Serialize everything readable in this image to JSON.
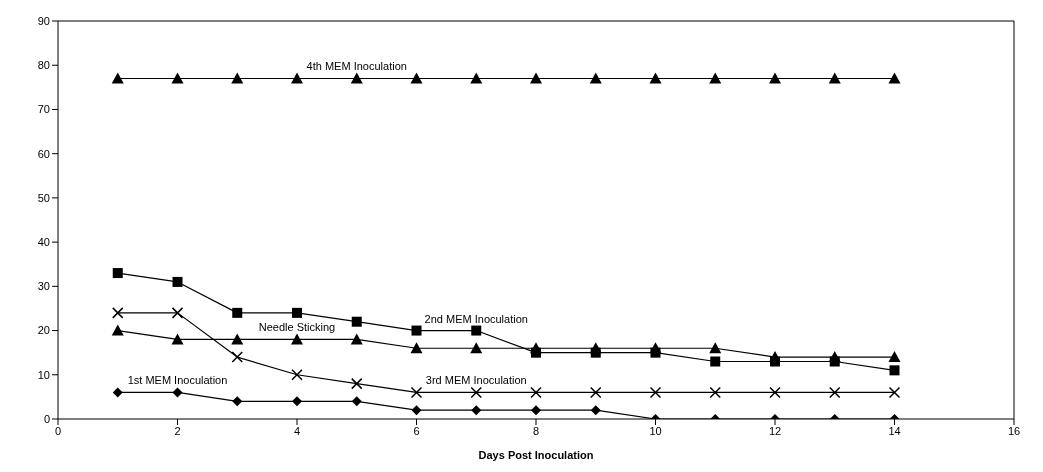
{
  "chart_data": {
    "type": "line",
    "xlabel": "Days Post Inoculation",
    "x": [
      1,
      2,
      3,
      4,
      5,
      6,
      7,
      8,
      9,
      10,
      11,
      12,
      13,
      14
    ],
    "series": [
      {
        "color": "#000000",
        "marker": "diamond",
        "values": [
          6,
          6,
          4,
          4,
          4,
          2,
          2,
          2,
          2,
          0,
          0,
          0,
          0,
          0
        ]
      },
      {
        "color": "#000000",
        "marker": "square",
        "values": [
          33,
          31,
          24,
          24,
          22,
          20,
          20,
          15,
          15,
          15,
          13,
          13,
          13,
          11
        ]
      },
      {
        "color": "#000000",
        "marker": "cross",
        "values": [
          24,
          24,
          14,
          10,
          8,
          6,
          6,
          6,
          6,
          6,
          6,
          6,
          6,
          6
        ]
      },
      {
        "color": "#000000",
        "marker": "triangle",
        "values": [
          20,
          18,
          18,
          18,
          18,
          16,
          16,
          16,
          16,
          16,
          16,
          14,
          14,
          14
        ]
      },
      {
        "color": "#000000",
        "marker": "triangle",
        "values": [
          77,
          77,
          77,
          77,
          77,
          77,
          77,
          77,
          77,
          77,
          77,
          77,
          77,
          77
        ]
      }
    ],
    "annotations": [
      {
        "text": "1st MEM Inoculation",
        "x": 2,
        "y": 6
      },
      {
        "text": "2nd MEM Inoculation",
        "x": 7,
        "y": 20
      },
      {
        "text": "3rd MEM Inoculation",
        "x": 7,
        "y": 6
      },
      {
        "text": "Needle Sticking",
        "x": 4,
        "y": 18
      },
      {
        "text": "4th MEM Inoculation",
        "x": 5,
        "y": 77
      }
    ],
    "xlim": [
      0,
      16
    ],
    "xticks": [
      0,
      2,
      4,
      6,
      8,
      10,
      12,
      14,
      16
    ],
    "ylim": [
      0,
      90
    ],
    "yticks": [
      0,
      10,
      20,
      30,
      40,
      50,
      60,
      70,
      80,
      90
    ],
    "grid": false,
    "legend": false,
    "line_style": "solid"
  }
}
